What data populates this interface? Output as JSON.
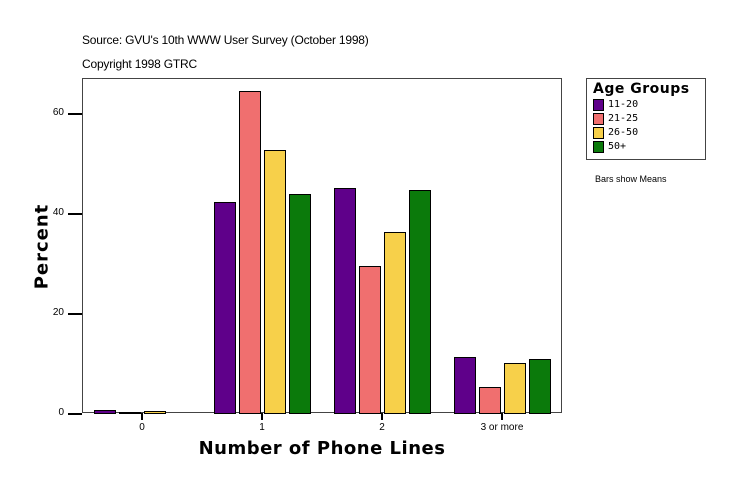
{
  "header": {
    "source": "Source: GVU's 10th WWW User Survey (October 1998)",
    "copyright": "Copyright 1998 GTRC"
  },
  "legend": {
    "title": "Age Groups",
    "items": [
      {
        "label": "11-20",
        "color": "#5f008a"
      },
      {
        "label": "21-25",
        "color": "#f06f6f"
      },
      {
        "label": "26-50",
        "color": "#f7d04a"
      },
      {
        "label": "50+",
        "color": "#0b7a0b"
      }
    ]
  },
  "note": "Bars show Means",
  "axes": {
    "ylabel": "Percent",
    "xlabel": "Number of Phone Lines",
    "yticks": [
      "0",
      "20",
      "40",
      "60"
    ],
    "xticks": [
      "0",
      "1",
      "2",
      "3 or more"
    ]
  },
  "chart_data": {
    "type": "bar",
    "title": "",
    "xlabel": "Number of Phone Lines",
    "ylabel": "Percent",
    "categories": [
      "0",
      "1",
      "2",
      "3 or more"
    ],
    "series": [
      {
        "name": "11-20",
        "color": "#5f008a",
        "values": [
          0.7,
          42.4,
          45.2,
          11.4
        ]
      },
      {
        "name": "21-25",
        "color": "#f06f6f",
        "values": [
          0.3,
          64.6,
          29.6,
          5.4
        ]
      },
      {
        "name": "26-50",
        "color": "#f7d04a",
        "values": [
          0.5,
          52.8,
          36.4,
          10.2
        ]
      },
      {
        "name": "50+",
        "color": "#0b7a0b",
        "values": [
          0,
          44.0,
          44.8,
          11.0
        ]
      }
    ],
    "ylim": [
      0,
      67
    ],
    "yticks": [
      0,
      20,
      40,
      60
    ],
    "grid": false,
    "legend_position": "right",
    "legend_title": "Age Groups",
    "annotations": [
      "Bars show Means"
    ]
  }
}
